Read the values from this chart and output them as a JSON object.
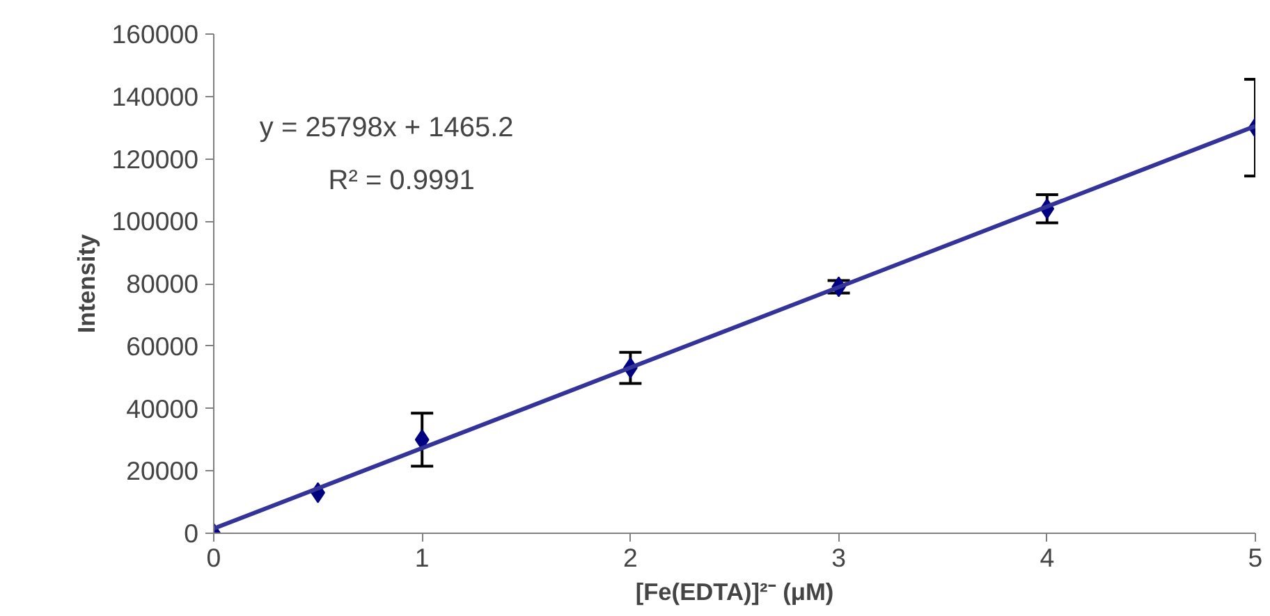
{
  "chart_data": {
    "type": "scatter",
    "xlabel": "[Fe(EDTA)]²⁻ (μM)",
    "ylabel": "Intensity",
    "x": [
      0,
      0.5,
      1,
      2,
      3,
      4,
      5
    ],
    "series": [
      {
        "color": "#000080",
        "values": [
          0,
          13000,
          30000,
          53000,
          79000,
          104000,
          130000
        ],
        "errors": [
          null,
          null,
          8500,
          5000,
          2000,
          4500,
          15500
        ],
        "marker": "diamond"
      },
      {
        "type": "line",
        "color": "#333399",
        "x": [
          0,
          5
        ],
        "values": [
          1500,
          130500
        ],
        "line_style": "solid"
      }
    ],
    "annotations": [
      "y = 25798x + 1465.2",
      "R² = 0.9991"
    ],
    "xlim": [
      0,
      5
    ],
    "xticks": [
      0,
      1,
      2,
      3,
      4,
      5
    ],
    "ylim": [
      0,
      160000
    ],
    "yticks": [
      0,
      20000,
      40000,
      60000,
      80000,
      100000,
      120000,
      140000,
      160000
    ],
    "grid": false
  }
}
